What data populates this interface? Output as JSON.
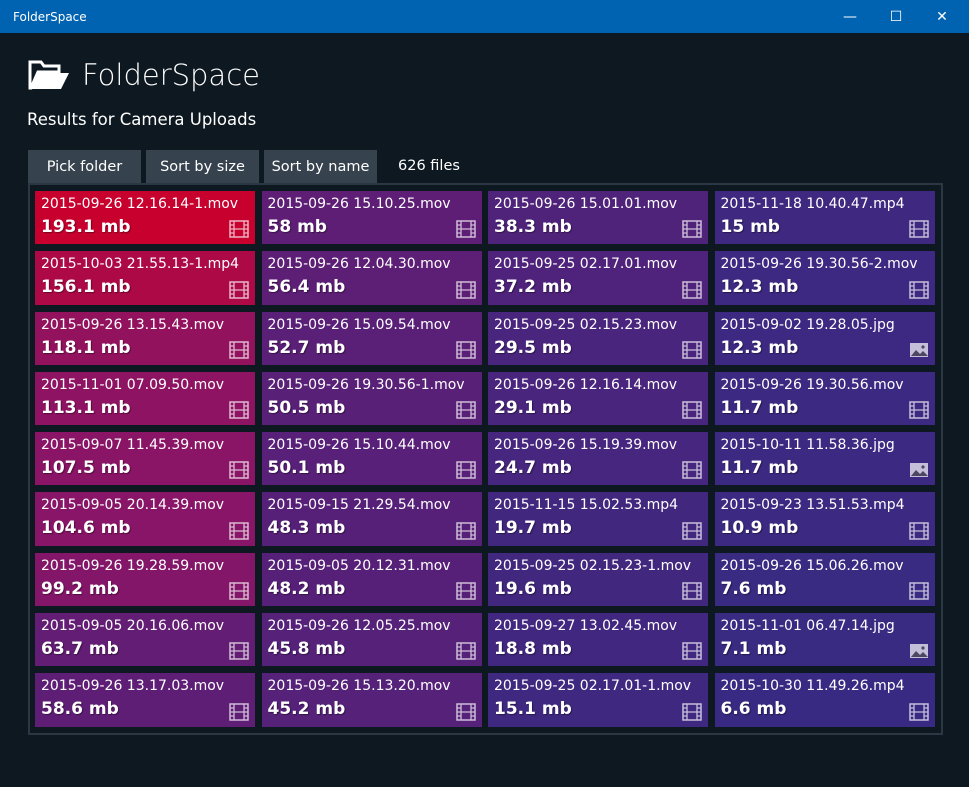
{
  "window": {
    "title": "FolderSpace",
    "minimize": "—",
    "maximize": "☐",
    "close": "✕"
  },
  "header": {
    "app_name": "FolderSpace",
    "subtitle": "Results for Camera Uploads"
  },
  "toolbar": {
    "pick_folder": "Pick folder",
    "sort_size": "Sort by size",
    "sort_name": "Sort by name",
    "file_count": "626 files"
  },
  "colors": {
    "titlebar": "#0063b1",
    "largest": "#c8002e",
    "smallest": "#382a82"
  },
  "files": [
    {
      "name": "2015-09-26 12.16.14-1.mov",
      "size": "193.1 mb",
      "mb": 193.1,
      "icon": "film-icon"
    },
    {
      "name": "2015-10-03 21.55.13-1.mp4",
      "size": "156.1 mb",
      "mb": 156.1,
      "icon": "film-icon"
    },
    {
      "name": "2015-09-26 13.15.43.mov",
      "size": "118.1 mb",
      "mb": 118.1,
      "icon": "film-icon"
    },
    {
      "name": "2015-11-01 07.09.50.mov",
      "size": "113.1 mb",
      "mb": 113.1,
      "icon": "film-icon"
    },
    {
      "name": "2015-09-07 11.45.39.mov",
      "size": "107.5 mb",
      "mb": 107.5,
      "icon": "film-icon"
    },
    {
      "name": "2015-09-05 20.14.39.mov",
      "size": "104.6 mb",
      "mb": 104.6,
      "icon": "film-icon"
    },
    {
      "name": "2015-09-26 19.28.59.mov",
      "size": "99.2 mb",
      "mb": 99.2,
      "icon": "film-icon"
    },
    {
      "name": "2015-09-05 20.16.06.mov",
      "size": "63.7 mb",
      "mb": 63.7,
      "icon": "film-icon"
    },
    {
      "name": "2015-09-26 13.17.03.mov",
      "size": "58.6 mb",
      "mb": 58.6,
      "icon": "film-icon"
    },
    {
      "name": "2015-09-26 15.10.25.mov",
      "size": "58 mb",
      "mb": 58,
      "icon": "film-icon"
    },
    {
      "name": "2015-09-26 12.04.30.mov",
      "size": "56.4 mb",
      "mb": 56.4,
      "icon": "film-icon"
    },
    {
      "name": "2015-09-26 15.09.54.mov",
      "size": "52.7 mb",
      "mb": 52.7,
      "icon": "film-icon"
    },
    {
      "name": "2015-09-26 19.30.56-1.mov",
      "size": "50.5 mb",
      "mb": 50.5,
      "icon": "film-icon"
    },
    {
      "name": "2015-09-26 15.10.44.mov",
      "size": "50.1 mb",
      "mb": 50.1,
      "icon": "film-icon"
    },
    {
      "name": "2015-09-15 21.29.54.mov",
      "size": "48.3 mb",
      "mb": 48.3,
      "icon": "film-icon"
    },
    {
      "name": "2015-09-05 20.12.31.mov",
      "size": "48.2 mb",
      "mb": 48.2,
      "icon": "film-icon"
    },
    {
      "name": "2015-09-26 12.05.25.mov",
      "size": "45.8 mb",
      "mb": 45.8,
      "icon": "film-icon"
    },
    {
      "name": "2015-09-26 15.13.20.mov",
      "size": "45.2 mb",
      "mb": 45.2,
      "icon": "film-icon"
    },
    {
      "name": "2015-09-26 15.01.01.mov",
      "size": "38.3 mb",
      "mb": 38.3,
      "icon": "film-icon"
    },
    {
      "name": "2015-09-25 02.17.01.mov",
      "size": "37.2 mb",
      "mb": 37.2,
      "icon": "film-icon"
    },
    {
      "name": "2015-09-25 02.15.23.mov",
      "size": "29.5 mb",
      "mb": 29.5,
      "icon": "film-icon"
    },
    {
      "name": "2015-09-26 12.16.14.mov",
      "size": "29.1 mb",
      "mb": 29.1,
      "icon": "film-icon"
    },
    {
      "name": "2015-09-26 15.19.39.mov",
      "size": "24.7 mb",
      "mb": 24.7,
      "icon": "film-icon"
    },
    {
      "name": "2015-11-15 15.02.53.mp4",
      "size": "19.7 mb",
      "mb": 19.7,
      "icon": "film-icon"
    },
    {
      "name": "2015-09-25 02.15.23-1.mov",
      "size": "19.6 mb",
      "mb": 19.6,
      "icon": "film-icon"
    },
    {
      "name": "2015-09-27 13.02.45.mov",
      "size": "18.8 mb",
      "mb": 18.8,
      "icon": "film-icon"
    },
    {
      "name": "2015-09-25 02.17.01-1.mov",
      "size": "15.1 mb",
      "mb": 15.1,
      "icon": "film-icon"
    },
    {
      "name": "2015-11-18 10.40.47.mp4",
      "size": "15 mb",
      "mb": 15,
      "icon": "film-icon"
    },
    {
      "name": "2015-09-26 19.30.56-2.mov",
      "size": "12.3 mb",
      "mb": 12.3,
      "icon": "film-icon"
    },
    {
      "name": "2015-09-02 19.28.05.jpg",
      "size": "12.3 mb",
      "mb": 12.3,
      "icon": "image-icon"
    },
    {
      "name": "2015-09-26 19.30.56.mov",
      "size": "11.7 mb",
      "mb": 11.7,
      "icon": "film-icon"
    },
    {
      "name": "2015-10-11 11.58.36.jpg",
      "size": "11.7 mb",
      "mb": 11.7,
      "icon": "image-icon"
    },
    {
      "name": "2015-09-23 13.51.53.mp4",
      "size": "10.9 mb",
      "mb": 10.9,
      "icon": "film-icon"
    },
    {
      "name": "2015-09-26 15.06.26.mov",
      "size": "7.6 mb",
      "mb": 7.6,
      "icon": "film-icon"
    },
    {
      "name": "2015-11-01 06.47.14.jpg",
      "size": "7.1 mb",
      "mb": 7.1,
      "icon": "image-icon"
    },
    {
      "name": "2015-10-30 11.49.26.mp4",
      "size": "6.6 mb",
      "mb": 6.6,
      "icon": "film-icon"
    }
  ]
}
